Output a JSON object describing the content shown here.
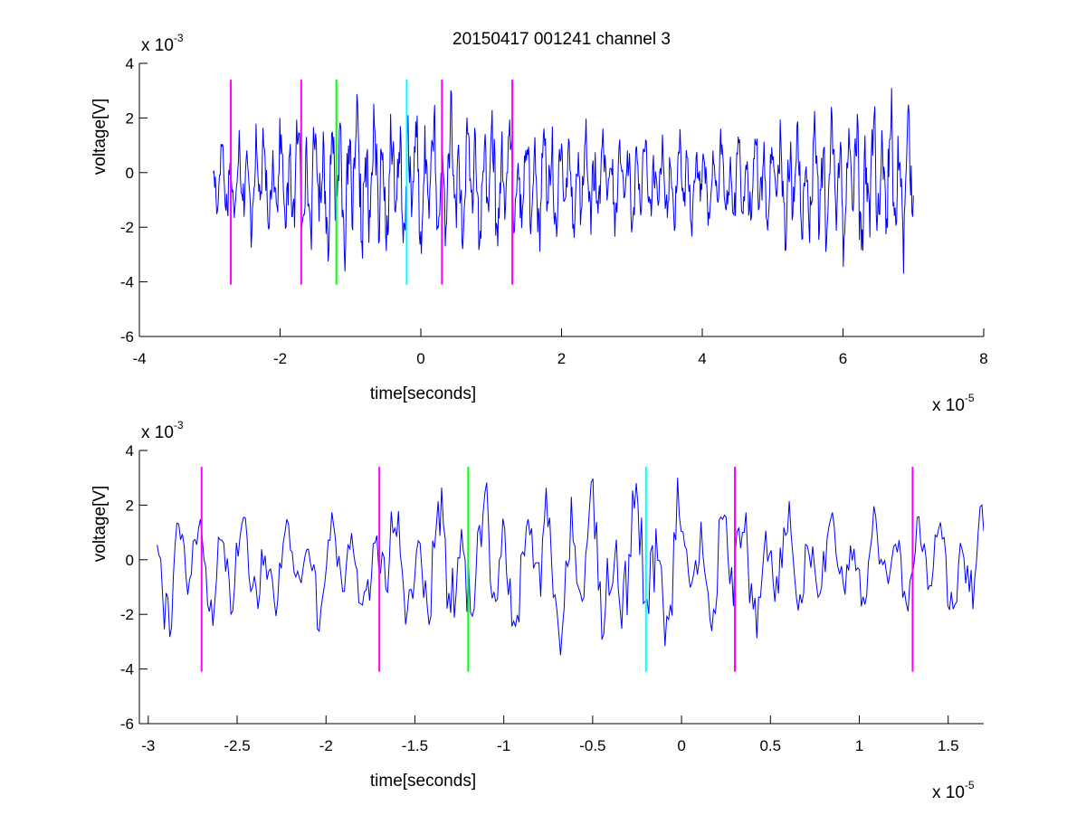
{
  "chart_data": [
    {
      "type": "line",
      "title": "20150417 001241 channel 3",
      "xlabel": "time[seconds]",
      "ylabel": "voltage[V]",
      "x_multiplier": "x 10",
      "x_exponent": "-5",
      "y_multiplier": "x 10",
      "y_exponent": "-3",
      "xlim": [
        -4,
        8
      ],
      "ylim": [
        -6,
        4
      ],
      "xticks": [
        "-4",
        "-2",
        "0",
        "2",
        "4",
        "6",
        "8"
      ],
      "yticks": [
        "-6",
        "-4",
        "-2",
        "0",
        "2",
        "4"
      ],
      "grid": false,
      "series": [
        {
          "color": "#0000ff",
          "x_start": -2.95,
          "x_end": 7.0,
          "samples": 1000,
          "y_range": [
            -3.7,
            3.1
          ]
        }
      ],
      "markers": [
        {
          "x": -2.7,
          "color": "#ff00ff",
          "y_range": [
            -4.1,
            3.4
          ]
        },
        {
          "x": -1.7,
          "color": "#ff00ff",
          "y_range": [
            -4.1,
            3.4
          ]
        },
        {
          "x": -1.2,
          "color": "#00ff00",
          "y_range": [
            -4.1,
            3.4
          ]
        },
        {
          "x": -0.2,
          "color": "#00ffff",
          "y_range": [
            -4.1,
            3.4
          ]
        },
        {
          "x": 0.3,
          "color": "#ff00ff",
          "y_range": [
            -4.1,
            3.4
          ]
        },
        {
          "x": 1.3,
          "color": "#ff00ff",
          "y_range": [
            -4.1,
            3.4
          ]
        }
      ]
    },
    {
      "type": "line",
      "title": "",
      "xlabel": "time[seconds]",
      "ylabel": "voltage[V]",
      "x_multiplier": "x 10",
      "x_exponent": "-5",
      "y_multiplier": "x 10",
      "y_exponent": "-3",
      "xlim": [
        -3.05,
        1.7
      ],
      "ylim": [
        -6,
        4
      ],
      "xticks": [
        "-3",
        "-2.5",
        "-2",
        "-1.5",
        "-1",
        "-0.5",
        "0",
        "0.5",
        "1",
        "1.5"
      ],
      "yticks": [
        "-6",
        "-4",
        "-2",
        "0",
        "2",
        "4"
      ],
      "grid": false,
      "series": [
        {
          "color": "#0000ff",
          "x_start": -2.95,
          "x_end": 1.7,
          "samples": 460,
          "y_range": [
            -3.5,
            3.0
          ]
        }
      ],
      "markers": [
        {
          "x": -2.7,
          "color": "#ff00ff",
          "y_range": [
            -4.1,
            3.4
          ]
        },
        {
          "x": -1.7,
          "color": "#ff00ff",
          "y_range": [
            -4.1,
            3.4
          ]
        },
        {
          "x": -1.2,
          "color": "#00ff00",
          "y_range": [
            -4.1,
            3.4
          ]
        },
        {
          "x": -0.2,
          "color": "#00ffff",
          "y_range": [
            -4.1,
            3.4
          ]
        },
        {
          "x": 0.3,
          "color": "#ff00ff",
          "y_range": [
            -4.1,
            3.4
          ]
        },
        {
          "x": 1.3,
          "color": "#ff00ff",
          "y_range": [
            -4.1,
            3.4
          ]
        }
      ]
    }
  ]
}
